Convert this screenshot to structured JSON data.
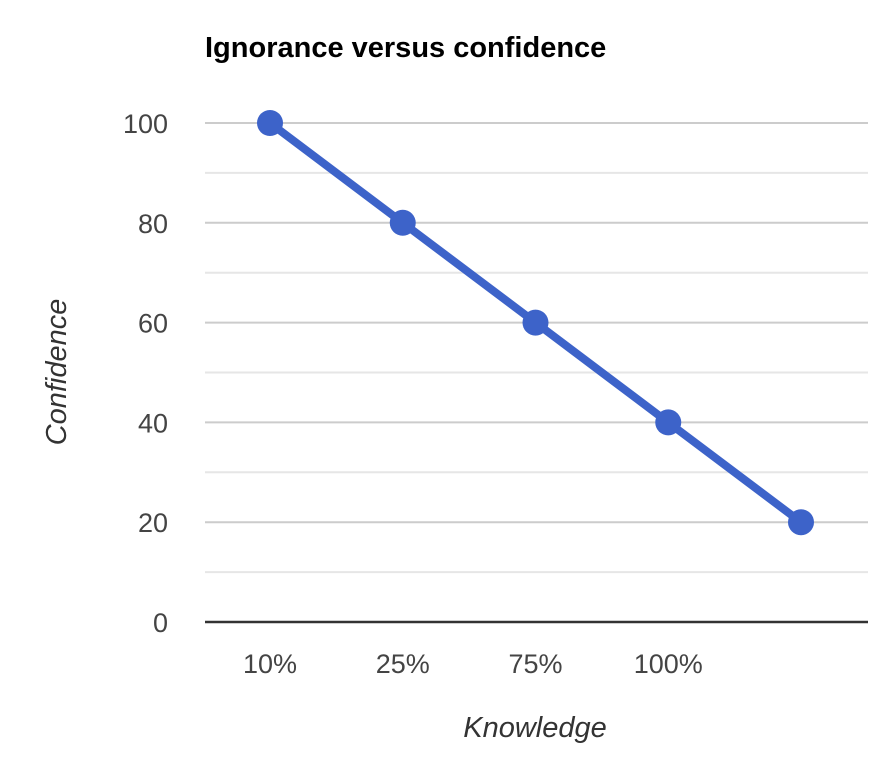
{
  "chart_data": {
    "type": "line",
    "title": "Ignorance versus confidence",
    "xlabel": "Knowledge",
    "ylabel": "Confidence",
    "categories": [
      "10%",
      "25%",
      "75%",
      "100%",
      ""
    ],
    "series": [
      {
        "values": [
          100,
          80,
          60,
          40,
          20
        ]
      }
    ],
    "ylim": [
      0,
      100
    ],
    "yticks": [
      "0",
      "20",
      "40",
      "60",
      "80",
      "100"
    ],
    "grid": true,
    "legend": "none",
    "colors": {
      "series": "#3d63c9",
      "major_grid": "#cccccc",
      "minor_grid": "#e6e6e6",
      "baseline": "#333333",
      "tick_text": "#444444"
    }
  }
}
